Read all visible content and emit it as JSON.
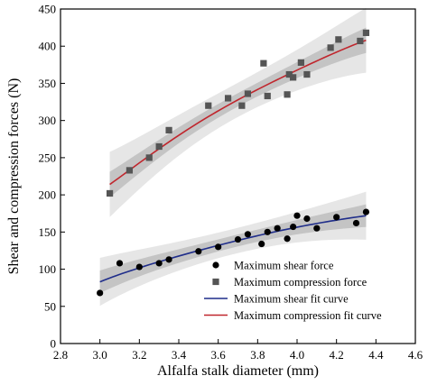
{
  "chart_data": {
    "type": "scatter",
    "title": "",
    "xlabel": "Alfalfa stalk diameter (mm)",
    "ylabel": "Shear and compression forces (N)",
    "xlim": [
      2.8,
      4.6
    ],
    "ylim": [
      0,
      450
    ],
    "x_ticks": [
      "2.8",
      "3.0",
      "3.2",
      "3.4",
      "3.6",
      "3.8",
      "4.0",
      "4.2",
      "4.4",
      "4.6"
    ],
    "y_ticks": [
      "0",
      "50",
      "100",
      "150",
      "200",
      "250",
      "300",
      "350",
      "400",
      "450"
    ],
    "grid": false,
    "legend_position": "bottom-right",
    "series": [
      {
        "name": "Maximum shear force",
        "kind": "points",
        "marker": "circle",
        "color": "#000000",
        "points": [
          [
            3.0,
            68
          ],
          [
            3.1,
            108
          ],
          [
            3.2,
            103
          ],
          [
            3.3,
            108
          ],
          [
            3.35,
            113
          ],
          [
            3.5,
            124
          ],
          [
            3.6,
            130
          ],
          [
            3.7,
            140
          ],
          [
            3.75,
            147
          ],
          [
            3.82,
            134
          ],
          [
            3.85,
            150
          ],
          [
            3.9,
            155
          ],
          [
            3.95,
            141
          ],
          [
            3.98,
            157
          ],
          [
            4.0,
            172
          ],
          [
            4.05,
            168
          ],
          [
            4.1,
            155
          ],
          [
            4.2,
            170
          ],
          [
            4.3,
            162
          ],
          [
            4.35,
            177
          ]
        ]
      },
      {
        "name": "Maximum compression force",
        "kind": "points",
        "marker": "square",
        "color": "#555555",
        "points": [
          [
            3.05,
            202
          ],
          [
            3.15,
            233
          ],
          [
            3.25,
            250
          ],
          [
            3.3,
            265
          ],
          [
            3.35,
            287
          ],
          [
            3.55,
            320
          ],
          [
            3.65,
            330
          ],
          [
            3.72,
            320
          ],
          [
            3.75,
            336
          ],
          [
            3.83,
            377
          ],
          [
            3.85,
            333
          ],
          [
            3.95,
            335
          ],
          [
            3.96,
            362
          ],
          [
            3.98,
            358
          ],
          [
            4.02,
            378
          ],
          [
            4.05,
            362
          ],
          [
            4.17,
            398
          ],
          [
            4.21,
            409
          ],
          [
            4.32,
            407
          ],
          [
            4.35,
            418
          ]
        ]
      },
      {
        "name": "Maximum shear fit curve",
        "kind": "fit",
        "color": "#1f2d8a",
        "x_range": [
          3.0,
          4.35
        ],
        "fit": [
          [
            3.0,
            83
          ],
          [
            3.3,
            110
          ],
          [
            3.6,
            132
          ],
          [
            3.9,
            151
          ],
          [
            4.2,
            166
          ],
          [
            4.35,
            172
          ]
        ],
        "confidence_band": 8,
        "prediction_band": 17
      },
      {
        "name": "Maximum compression fit curve",
        "kind": "fit",
        "color": "#c0262d",
        "x_range": [
          3.05,
          4.35
        ],
        "fit": [
          [
            3.05,
            214
          ],
          [
            3.3,
            262
          ],
          [
            3.6,
            313
          ],
          [
            3.9,
            355
          ],
          [
            4.2,
            392
          ],
          [
            4.35,
            408
          ]
        ],
        "confidence_band": 9,
        "prediction_band": 23
      }
    ]
  }
}
